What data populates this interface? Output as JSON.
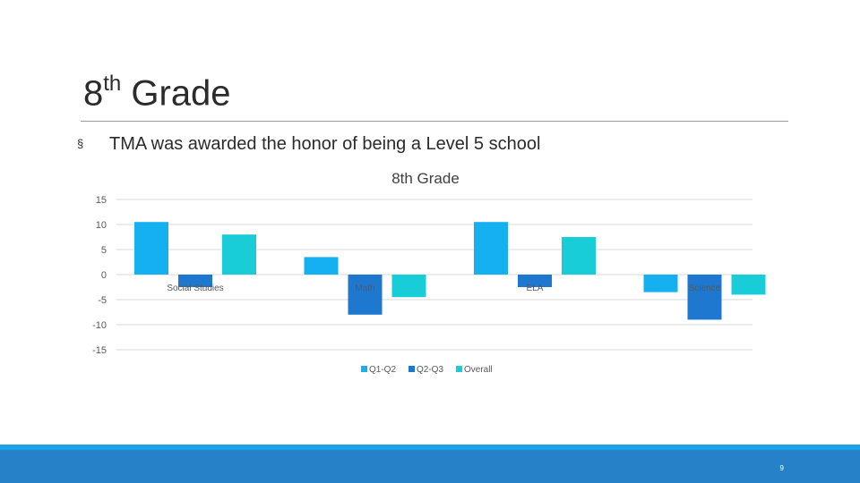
{
  "slide": {
    "title_main": "8",
    "title_sup": "th",
    "title_rest": " Grade",
    "bullet_marker": "§",
    "bullet_text": "TMA was awarded the honor of being a Level 5 school",
    "page_number": "9"
  },
  "colors": {
    "q1q2": "#14b0f0",
    "q2q3": "#1f78d0",
    "overall": "#18cdd8",
    "grid": "#d9d9d9",
    "text": "#595959",
    "footer": "#2681c8",
    "footer_band": "#1ba3e8"
  },
  "chart_data": {
    "type": "bar",
    "title": "8th Grade",
    "categories": [
      "Social Studies",
      "Math",
      "ELA",
      "Science"
    ],
    "series": [
      {
        "name": "Q1-Q2",
        "values": [
          10.5,
          3.5,
          10.5,
          -3.5
        ]
      },
      {
        "name": "Q2-Q3",
        "values": [
          -2.5,
          -8,
          -2.5,
          -9
        ]
      },
      {
        "name": "Overall",
        "values": [
          8,
          -4.5,
          7.5,
          -4
        ]
      }
    ],
    "yticks": [
      "15",
      "10",
      "5",
      "0",
      "-5",
      "-10",
      "-15"
    ],
    "ylim": [
      -15,
      15
    ],
    "grid": true,
    "legend": "bottom"
  }
}
